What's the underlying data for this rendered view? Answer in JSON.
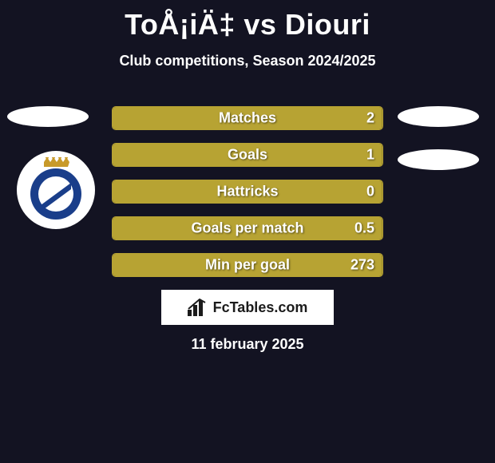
{
  "title": "ToÅ¡iÄ‡ vs Diouri",
  "subtitle": "Club competitions, Season 2024/2025",
  "date": "11 february 2025",
  "logo_text": "FcTables.com",
  "colors": {
    "background": "#131322",
    "bar_fill": "#b7a333",
    "bar_border": "#b7a333",
    "text": "#ffffff",
    "logo_bg": "#ffffff"
  },
  "stats": [
    {
      "label": "Matches",
      "value": "2",
      "fill_pct": 100
    },
    {
      "label": "Goals",
      "value": "1",
      "fill_pct": 100
    },
    {
      "label": "Hattricks",
      "value": "0",
      "fill_pct": 100
    },
    {
      "label": "Goals per match",
      "value": "0.5",
      "fill_pct": 100
    },
    {
      "label": "Min per goal",
      "value": "273",
      "fill_pct": 100
    }
  ],
  "crest": {
    "outer_ring": "#1a3e8a",
    "inner": "#ffffff",
    "stripe": "#1a3e8a",
    "crown": "#c89a2a",
    "ring_text_color": "#ffffff"
  }
}
